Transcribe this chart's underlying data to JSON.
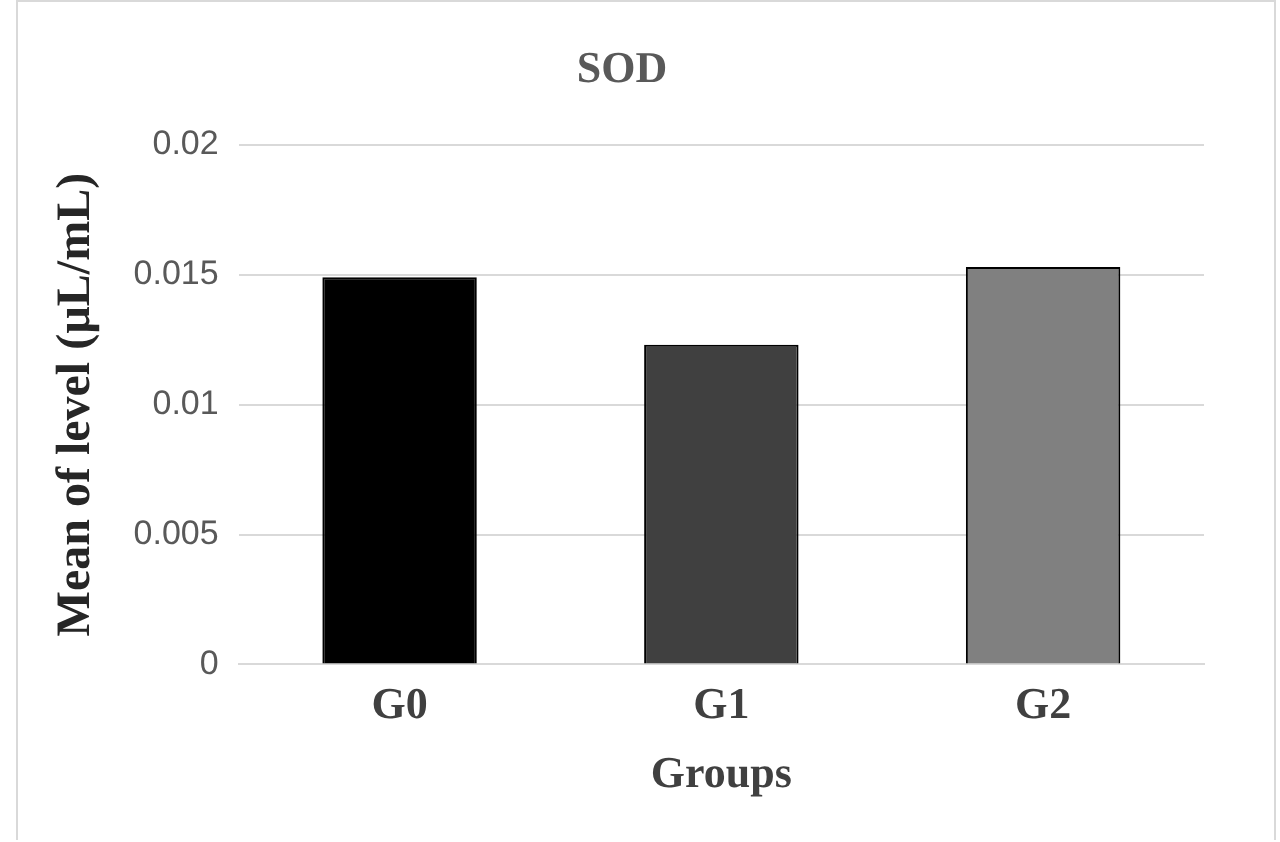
{
  "chart_data": {
    "type": "bar",
    "title": "SOD",
    "xlabel": "Groups",
    "ylabel": "Mean of level (µL/mL)",
    "categories": [
      "G0",
      "G1",
      "G2"
    ],
    "values": [
      0.0149,
      0.0123,
      0.0153
    ],
    "colors": [
      "#000000",
      "#404040",
      "#808080"
    ],
    "ylim": [
      0,
      0.02
    ],
    "yticks": [
      0,
      0.005,
      0.01,
      0.015,
      0.02
    ],
    "grid": "y"
  }
}
